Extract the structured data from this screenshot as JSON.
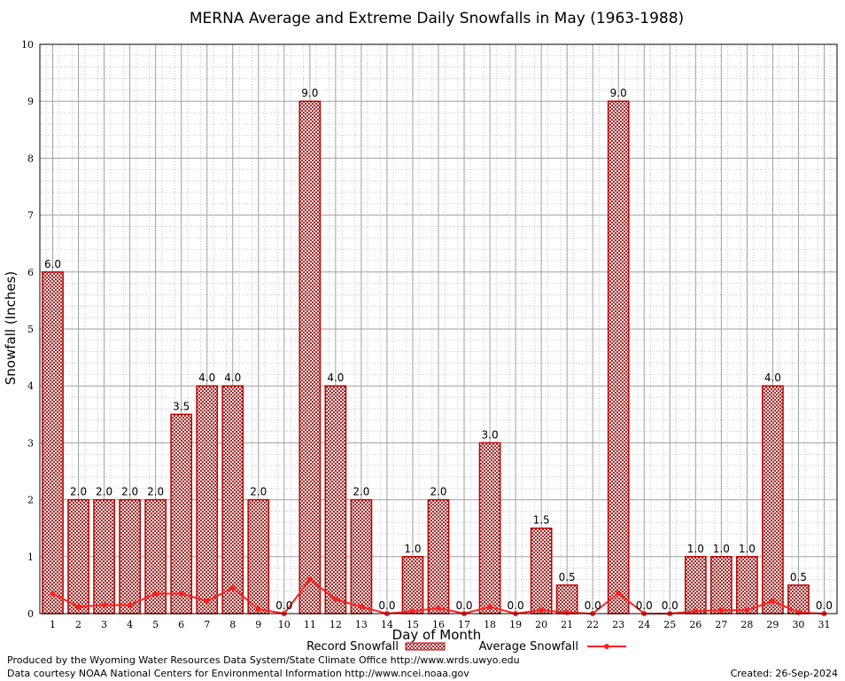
{
  "chart_data": {
    "type": "bar",
    "title": "MERNA Average and Extreme Daily Snowfalls in May (1963-1988)",
    "xlabel": "Day of Month",
    "ylabel": "Snowfall (Inches)",
    "ylim": [
      0,
      10
    ],
    "yticks": [
      "0",
      "1",
      "2",
      "3",
      "4",
      "5",
      "6",
      "7",
      "8",
      "9",
      "10"
    ],
    "categories": [
      "1",
      "2",
      "3",
      "4",
      "5",
      "6",
      "7",
      "8",
      "9",
      "10",
      "11",
      "12",
      "13",
      "14",
      "15",
      "16",
      "17",
      "18",
      "19",
      "20",
      "21",
      "22",
      "23",
      "24",
      "25",
      "26",
      "27",
      "28",
      "29",
      "30",
      "31"
    ],
    "series": [
      {
        "name": "Record Snowfall",
        "type": "bar",
        "values": [
          6.0,
          2.0,
          2.0,
          2.0,
          2.0,
          3.5,
          4.0,
          4.0,
          2.0,
          0.0,
          9.0,
          4.0,
          2.0,
          0.0,
          1.0,
          2.0,
          0.0,
          3.0,
          0.0,
          1.5,
          0.5,
          0.0,
          9.0,
          0.0,
          0.0,
          1.0,
          1.0,
          1.0,
          4.0,
          0.5,
          0.0
        ],
        "labels": [
          "6.0",
          "2.0",
          "2.0",
          "2.0",
          "2.0",
          "3.5",
          "4.0",
          "4.0",
          "2.0",
          "0.0",
          "9.0",
          "4.0",
          "2.0",
          "0.0",
          "1.0",
          "2.0",
          "0.0",
          "3.0",
          "0.0",
          "1.5",
          "0.5",
          "0.0",
          "9.0",
          "0.0",
          "0.0",
          "1.0",
          "1.0",
          "1.0",
          "4.0",
          "0.5",
          "0.0"
        ]
      },
      {
        "name": "Average Snowfall",
        "type": "line",
        "values": [
          0.35,
          0.12,
          0.15,
          0.15,
          0.35,
          0.35,
          0.22,
          0.45,
          0.08,
          0.0,
          0.6,
          0.25,
          0.12,
          0.0,
          0.04,
          0.1,
          0.0,
          0.12,
          0.0,
          0.06,
          0.02,
          0.0,
          0.36,
          0.0,
          0.0,
          0.04,
          0.06,
          0.06,
          0.22,
          0.02,
          0.0
        ]
      }
    ],
    "grid": true,
    "legend_position": "bottom-center",
    "colors": {
      "bar_fill": "#a52a2a",
      "bar_edge": "#c00000",
      "line": "#ff2020",
      "major_grid": "#a0a0a0",
      "minor_grid": "#c8c8c8"
    }
  },
  "footer": {
    "credit_line1": "Produced by the Wyoming Water Resources Data System/State Climate Office http://www.wrds.uwyo.edu",
    "credit_line2": "Data courtesy NOAA National Centers for Environmental Information http://www.ncei.noaa.gov",
    "created": "Created:  26-Sep-2024"
  }
}
